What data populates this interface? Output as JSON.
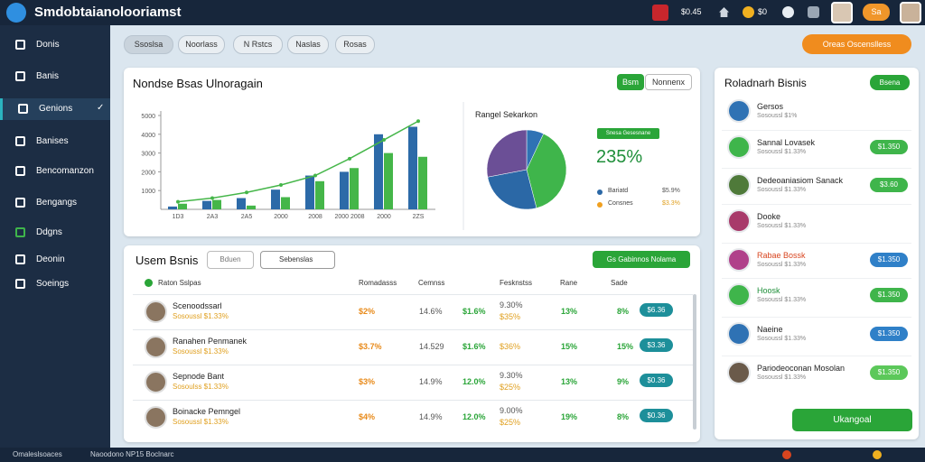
{
  "header": {
    "title": "Smdobtaianolooriamst",
    "balance": "$0.45",
    "coins": "$0",
    "pill": "Sa"
  },
  "sidebar": {
    "items": [
      "Donis",
      "Banis",
      "Genions",
      "Banises",
      "Bencomanzon",
      "Bengangs",
      "Ddgns",
      "Deonin",
      "Soeings"
    ],
    "active": 2
  },
  "tabs": [
    "Ssoslsa",
    "Noorlass",
    "N Rstcs",
    "Naslas",
    "Rosas"
  ],
  "action_button": "Oreas Oscenslless",
  "chart_card": {
    "title": "Nondse Bsas Ulnoragain",
    "button_primary": "Bsm",
    "button_secondary": "Nonnenx"
  },
  "bar_chart": {
    "type": "bar",
    "categories": [
      "1D3",
      "2A3",
      "2A5",
      "2000",
      "2008",
      "2000 2008",
      "2000",
      "2ZS"
    ],
    "ylim": [
      0,
      5000
    ],
    "yticks": [
      1000,
      2000,
      3000,
      4000,
      5000
    ],
    "series": [
      {
        "color": "#2c6aa8",
        "values": [
          150,
          450,
          600,
          1050,
          1800,
          2000,
          4000,
          4400
        ]
      },
      {
        "color": "#45b649",
        "values": [
          300,
          500,
          200,
          650,
          1500,
          2200,
          3000,
          2800
        ]
      }
    ],
    "line": {
      "color": "#45b649",
      "values": [
        400,
        600,
        900,
        1300,
        1800,
        2700,
        3700,
        4700
      ]
    }
  },
  "pie_chart": {
    "type": "pie",
    "title": "Rangel Sekarkon",
    "badge": "Snesa Gesesnane",
    "highlight": "235%",
    "values": [
      7,
      39,
      26,
      28
    ],
    "colors": [
      "#2f72b4",
      "#3fb54b",
      "#2b68a6",
      "#6b4f96"
    ],
    "legend": [
      {
        "name": "Bariatd",
        "value": "$5.9%",
        "color": "#2b68a6"
      },
      {
        "name": "Consnes",
        "value": "$3.3%",
        "color": "#f0a020"
      }
    ]
  },
  "table": {
    "title": "Usem Bsnis",
    "filter": "Bduen",
    "dropdown": "Sebenslas",
    "button": "Gs Gabinnos Nolama",
    "columns": [
      "Raton Sslpas",
      "Romadasss",
      "Cemnss",
      "Fesknstss",
      "Rane",
      "Sade"
    ],
    "rows": [
      {
        "name": "Scenoodssarl",
        "sub": "Sosoussl $1.33%",
        "cells": [
          "$2%",
          "14.6%",
          "$1.6%",
          [
            "9.30%",
            "$35%"
          ],
          "13%",
          "8%"
        ],
        "badge": "$6.36"
      },
      {
        "name": "Ranahen Penmanek",
        "sub": "Sosoussl $1.33%",
        "cells": [
          "$3.7%",
          "14.529",
          "$1.6%",
          [
            "$36%"
          ],
          "15%",
          "15%"
        ],
        "badge": "$3.36"
      },
      {
        "name": "Sepnode Bant",
        "sub": "Sosoulss $1.33%",
        "cells": [
          "$3%",
          "14.9%",
          "12.0%",
          [
            "9.30%",
            "$25%"
          ],
          "13%",
          "9%"
        ],
        "badge": "$0.36"
      },
      {
        "name": "Boinacke Pemngel",
        "sub": "Sosoussl $1.33%",
        "cells": [
          "$4%",
          "14.9%",
          "12.0%",
          [
            "9.00%",
            "$25%"
          ],
          "19%",
          "8%"
        ],
        "badge": "$0.36"
      }
    ]
  },
  "side_panel": {
    "title": "Roladnarh Bisnis",
    "button": "Bsena",
    "items": [
      {
        "name": "Gersos",
        "sub": "Sosoussl $1%",
        "color": "#2f72b4"
      },
      {
        "name": "Sannal Lovasek",
        "sub": "Sosoussl $1.33%",
        "color": "#3fb54b",
        "badge": "$1.350",
        "badge_color": "#3fb54b"
      },
      {
        "name": "Dedeoaniasiom Sanack",
        "sub": "Sosoussl $1.33%",
        "color": "#4f7a3a",
        "badge": "$3.60",
        "badge_color": "#3fb54b"
      },
      {
        "name": "Dooke",
        "sub": "Sosoussl $1.33%",
        "color": "#a83a6a"
      },
      {
        "name": "Rabae Bossk",
        "sub": "Sosoussl $1.33%",
        "color": "#b0408a",
        "badge": "$1.350",
        "badge_color": "#2f80c8"
      },
      {
        "name": "Hoosk",
        "sub": "Sosoussl $1.33%",
        "color": "#3fb54b",
        "badge": "$1.350",
        "badge_color": "#3fb54b"
      },
      {
        "name": "Naeine",
        "sub": "Sosoussl $1.33%",
        "color": "#2f72b4",
        "badge": "$1.350",
        "badge_color": "#2f80c8"
      },
      {
        "name": "Pariodeoconan Mosolan",
        "sub": "Sosoussl $1.33%",
        "color": "#6a5a4a",
        "badge": "$1.350",
        "badge_color": "#5cc85a"
      }
    ],
    "footer_button": "Ukangoal"
  },
  "footer": {
    "left": "Omaleslsoaces",
    "center": "Naoodono NP15 Boclnarc"
  }
}
